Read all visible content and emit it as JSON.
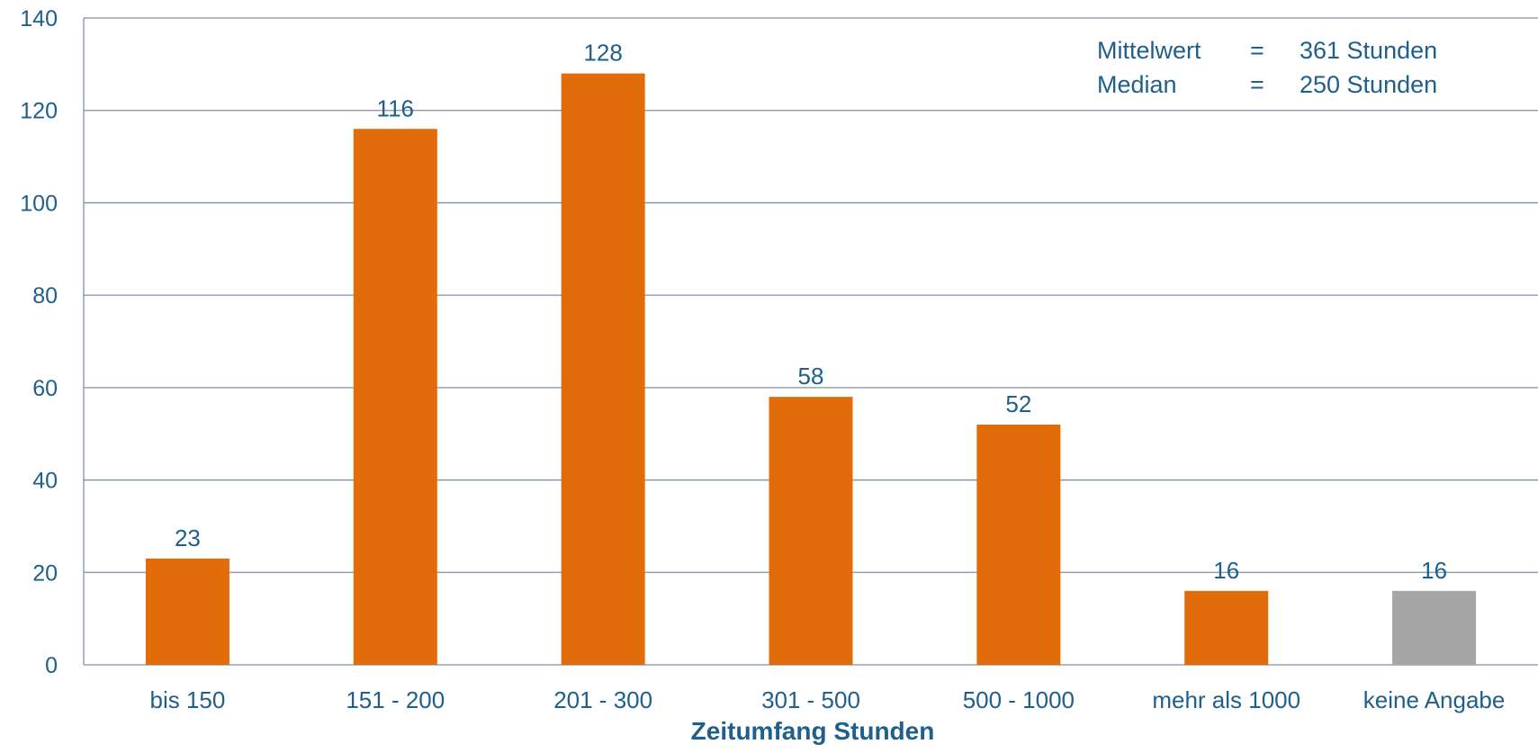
{
  "chart_data": {
    "type": "bar",
    "title": "",
    "xlabel": "Zeitumfang Stunden",
    "ylabel": "",
    "ylim": [
      0,
      140
    ],
    "yticks": [
      0,
      20,
      40,
      60,
      80,
      100,
      120,
      140
    ],
    "grid": true,
    "categories": [
      "bis 150",
      "151 - 200",
      "201 - 300",
      "301 - 500",
      "500 - 1000",
      "mehr als 1000",
      "keine Angabe"
    ],
    "values": [
      23,
      116,
      128,
      58,
      52,
      16,
      16
    ],
    "bar_colors": [
      "#e36c0a",
      "#e36c0a",
      "#e36c0a",
      "#e36c0a",
      "#e36c0a",
      "#e36c0a",
      "#a6a6a6"
    ],
    "annotations": {
      "mean": {
        "label": "Mittelwert",
        "sep": "=",
        "value": "361 Stunden"
      },
      "median": {
        "label": "Median",
        "sep": "=",
        "value": "250 Stunden"
      }
    },
    "colors": {
      "text": "#1f5f8b",
      "grid": "#7f8fa6"
    }
  }
}
